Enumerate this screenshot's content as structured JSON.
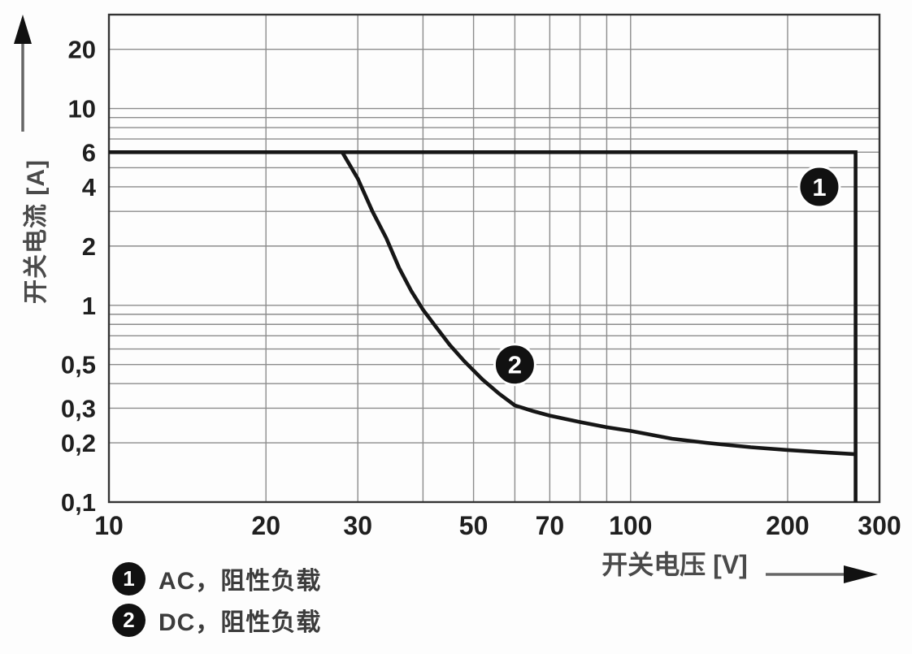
{
  "chart_data": {
    "type": "line",
    "scale": "log-log",
    "x_axis": {
      "label": "开关电压 [V]",
      "unit": "V",
      "range": [
        10,
        300
      ],
      "ticks": [
        {
          "v": 10,
          "label": "10"
        },
        {
          "v": 20,
          "label": "20"
        },
        {
          "v": 30,
          "label": "30"
        },
        {
          "v": 50,
          "label": "50"
        },
        {
          "v": 70,
          "label": "70"
        },
        {
          "v": 100,
          "label": "100"
        },
        {
          "v": 200,
          "label": "200"
        },
        {
          "v": 300,
          "label": "300"
        }
      ],
      "gridlines": [
        20,
        30,
        40,
        50,
        60,
        70,
        80,
        90,
        100,
        200
      ]
    },
    "y_axis": {
      "label": "开关电流 [A]",
      "unit": "A",
      "range": [
        0.1,
        30
      ],
      "ticks": [
        {
          "v": 20,
          "label": "20"
        },
        {
          "v": 10,
          "label": "10"
        },
        {
          "v": 6,
          "label": "6"
        },
        {
          "v": 4,
          "label": "4"
        },
        {
          "v": 2,
          "label": "2"
        },
        {
          "v": 1,
          "label": "1"
        },
        {
          "v": 0.5,
          "label": "0,5"
        },
        {
          "v": 0.3,
          "label": "0,3"
        },
        {
          "v": 0.2,
          "label": "0,2"
        },
        {
          "v": 0.1,
          "label": "0,1"
        }
      ],
      "gridlines": [
        0.2,
        0.3,
        0.4,
        0.5,
        0.6,
        0.7,
        0.8,
        0.9,
        1,
        2,
        3,
        4,
        5,
        6,
        7,
        8,
        9,
        10,
        20
      ]
    },
    "series": [
      {
        "id": "ac",
        "marker": "1",
        "name": "AC，阻性负载",
        "points": [
          [
            10,
            6
          ],
          [
            270,
            6
          ],
          [
            270,
            0.1
          ]
        ]
      },
      {
        "id": "dc",
        "marker": "2",
        "name": "DC，阻性负载",
        "points": [
          [
            28,
            6
          ],
          [
            30,
            4.4
          ],
          [
            32,
            3.0
          ],
          [
            34,
            2.2
          ],
          [
            36,
            1.55
          ],
          [
            38,
            1.18
          ],
          [
            40,
            0.95
          ],
          [
            42,
            0.8
          ],
          [
            45,
            0.63
          ],
          [
            48,
            0.52
          ],
          [
            52,
            0.42
          ],
          [
            56,
            0.355
          ],
          [
            60,
            0.31
          ],
          [
            65,
            0.29
          ],
          [
            70,
            0.275
          ],
          [
            80,
            0.255
          ],
          [
            90,
            0.24
          ],
          [
            100,
            0.23
          ],
          [
            120,
            0.21
          ],
          [
            140,
            0.2
          ],
          [
            170,
            0.19
          ],
          [
            200,
            0.184
          ],
          [
            235,
            0.179
          ],
          [
            270,
            0.175
          ]
        ]
      }
    ],
    "marker_badges": [
      {
        "label": "1",
        "x": 230,
        "y": 4.0
      },
      {
        "label": "2",
        "x": 60,
        "y": 0.5
      }
    ],
    "colors": {
      "curve": "#161616",
      "grid": "#8c8c8c",
      "frame": "#343434",
      "badge_bg": "#111111",
      "badge_text": "#ffffff",
      "tick_text": "#1f1f1f",
      "axis_title": "#4a4a4a",
      "arrow": "#666666",
      "arrow_head": "#111111"
    }
  },
  "legend": {
    "items": [
      {
        "symbol": "1",
        "label": "AC，阻性负载"
      },
      {
        "symbol": "2",
        "label": "DC，阻性负载"
      }
    ]
  }
}
